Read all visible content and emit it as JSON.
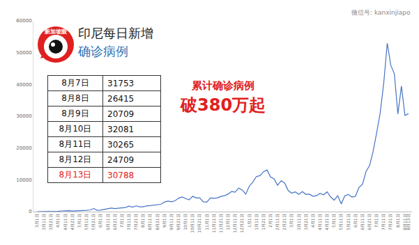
{
  "chart_data": {
    "type": "line",
    "title": "印尼每日新增",
    "subtitle": "确诊病例",
    "annotations": [
      "累计确诊病例",
      "破380万起"
    ],
    "color": "#4472c4",
    "grid": false,
    "ylim": [
      0,
      60000
    ],
    "yticks": [
      0,
      10000,
      20000,
      30000,
      40000,
      50000,
      60000
    ],
    "categories": [
      "3月1日",
      null,
      "3月11日",
      null,
      "3月21日",
      null,
      "4月1日",
      null,
      "4月11日",
      null,
      "4月21日",
      null,
      "5月1日",
      null,
      "5月11日",
      null,
      "5月21日",
      null,
      "6月1日",
      null,
      "6月11日",
      null,
      "6月21日",
      null,
      "7月1日",
      null,
      "7月11日",
      null,
      "7月21日",
      null,
      "8月1日",
      null,
      "8月11日",
      null,
      "8月21日",
      null,
      "9月1日",
      null,
      "9月11日",
      null,
      "9月21日",
      null,
      "10月1日",
      null,
      "10月11日",
      null,
      "10月21日",
      null,
      "11月1日",
      null,
      "11月11日",
      null,
      "11月21日",
      null,
      "12月1日",
      null,
      "12月11日",
      null,
      "12月21日",
      null,
      "1月1日",
      null,
      "1月11日",
      null,
      "1月21日",
      null,
      "2月1日",
      null,
      "2月11日",
      null,
      "2月21日",
      null,
      "3月1日",
      null,
      "3月11日",
      null,
      "3月21日",
      null,
      "4月1日",
      null,
      "4月11日",
      null,
      "4月21日",
      null,
      "5月1日",
      null,
      "5月11日",
      null,
      "5月21日",
      null,
      "6月1日",
      null,
      "6月11日",
      null,
      "6月21日",
      null,
      "7月1日",
      null,
      "7月11日",
      null,
      "7月21日",
      null,
      "8月1日",
      null,
      "8月11日",
      "8月13日"
    ],
    "values": [
      0,
      2,
      35,
      80,
      100,
      150,
      110,
      220,
      330,
      280,
      190,
      270,
      430,
      370,
      390,
      490,
      970,
      420,
      470,
      700,
      980,
      1100,
      960,
      1100,
      1200,
      1300,
      1700,
      1400,
      1800,
      1500,
      1500,
      1800,
      1900,
      2000,
      2200,
      2300,
      3000,
      3300,
      3100,
      3400,
      4200,
      4600,
      4100,
      3700,
      4800,
      4300,
      4300,
      3100,
      3000,
      4300,
      4200,
      4300,
      4800,
      5000,
      5500,
      6300,
      6100,
      7400,
      6800,
      5500,
      8000,
      9300,
      11000,
      11300,
      12500,
      13100,
      10900,
      10300,
      8300,
      9700,
      9000,
      6600,
      5800,
      6200,
      5400,
      6300,
      5400,
      5500,
      4800,
      5000,
      5700,
      5300,
      6200,
      4600,
      3600,
      5000,
      2400,
      5000,
      5400,
      4600,
      4800,
      7600,
      8600,
      12600,
      14500,
      18900,
      24800,
      31000,
      40400,
      53000,
      46000,
      43400,
      30700,
      39500,
      30265,
      30788
    ]
  },
  "table": {
    "rows": [
      [
        "8月7日",
        31753
      ],
      [
        "8月8日",
        26415
      ],
      [
        "8月9日",
        20709
      ],
      [
        "8月10日",
        32081
      ],
      [
        "8月11日",
        30265
      ],
      [
        "8月12日",
        24709
      ],
      [
        "8月13日",
        30788
      ]
    ]
  },
  "logo": "新加坡眼",
  "watermark": "微信号: kanxinjiapo"
}
